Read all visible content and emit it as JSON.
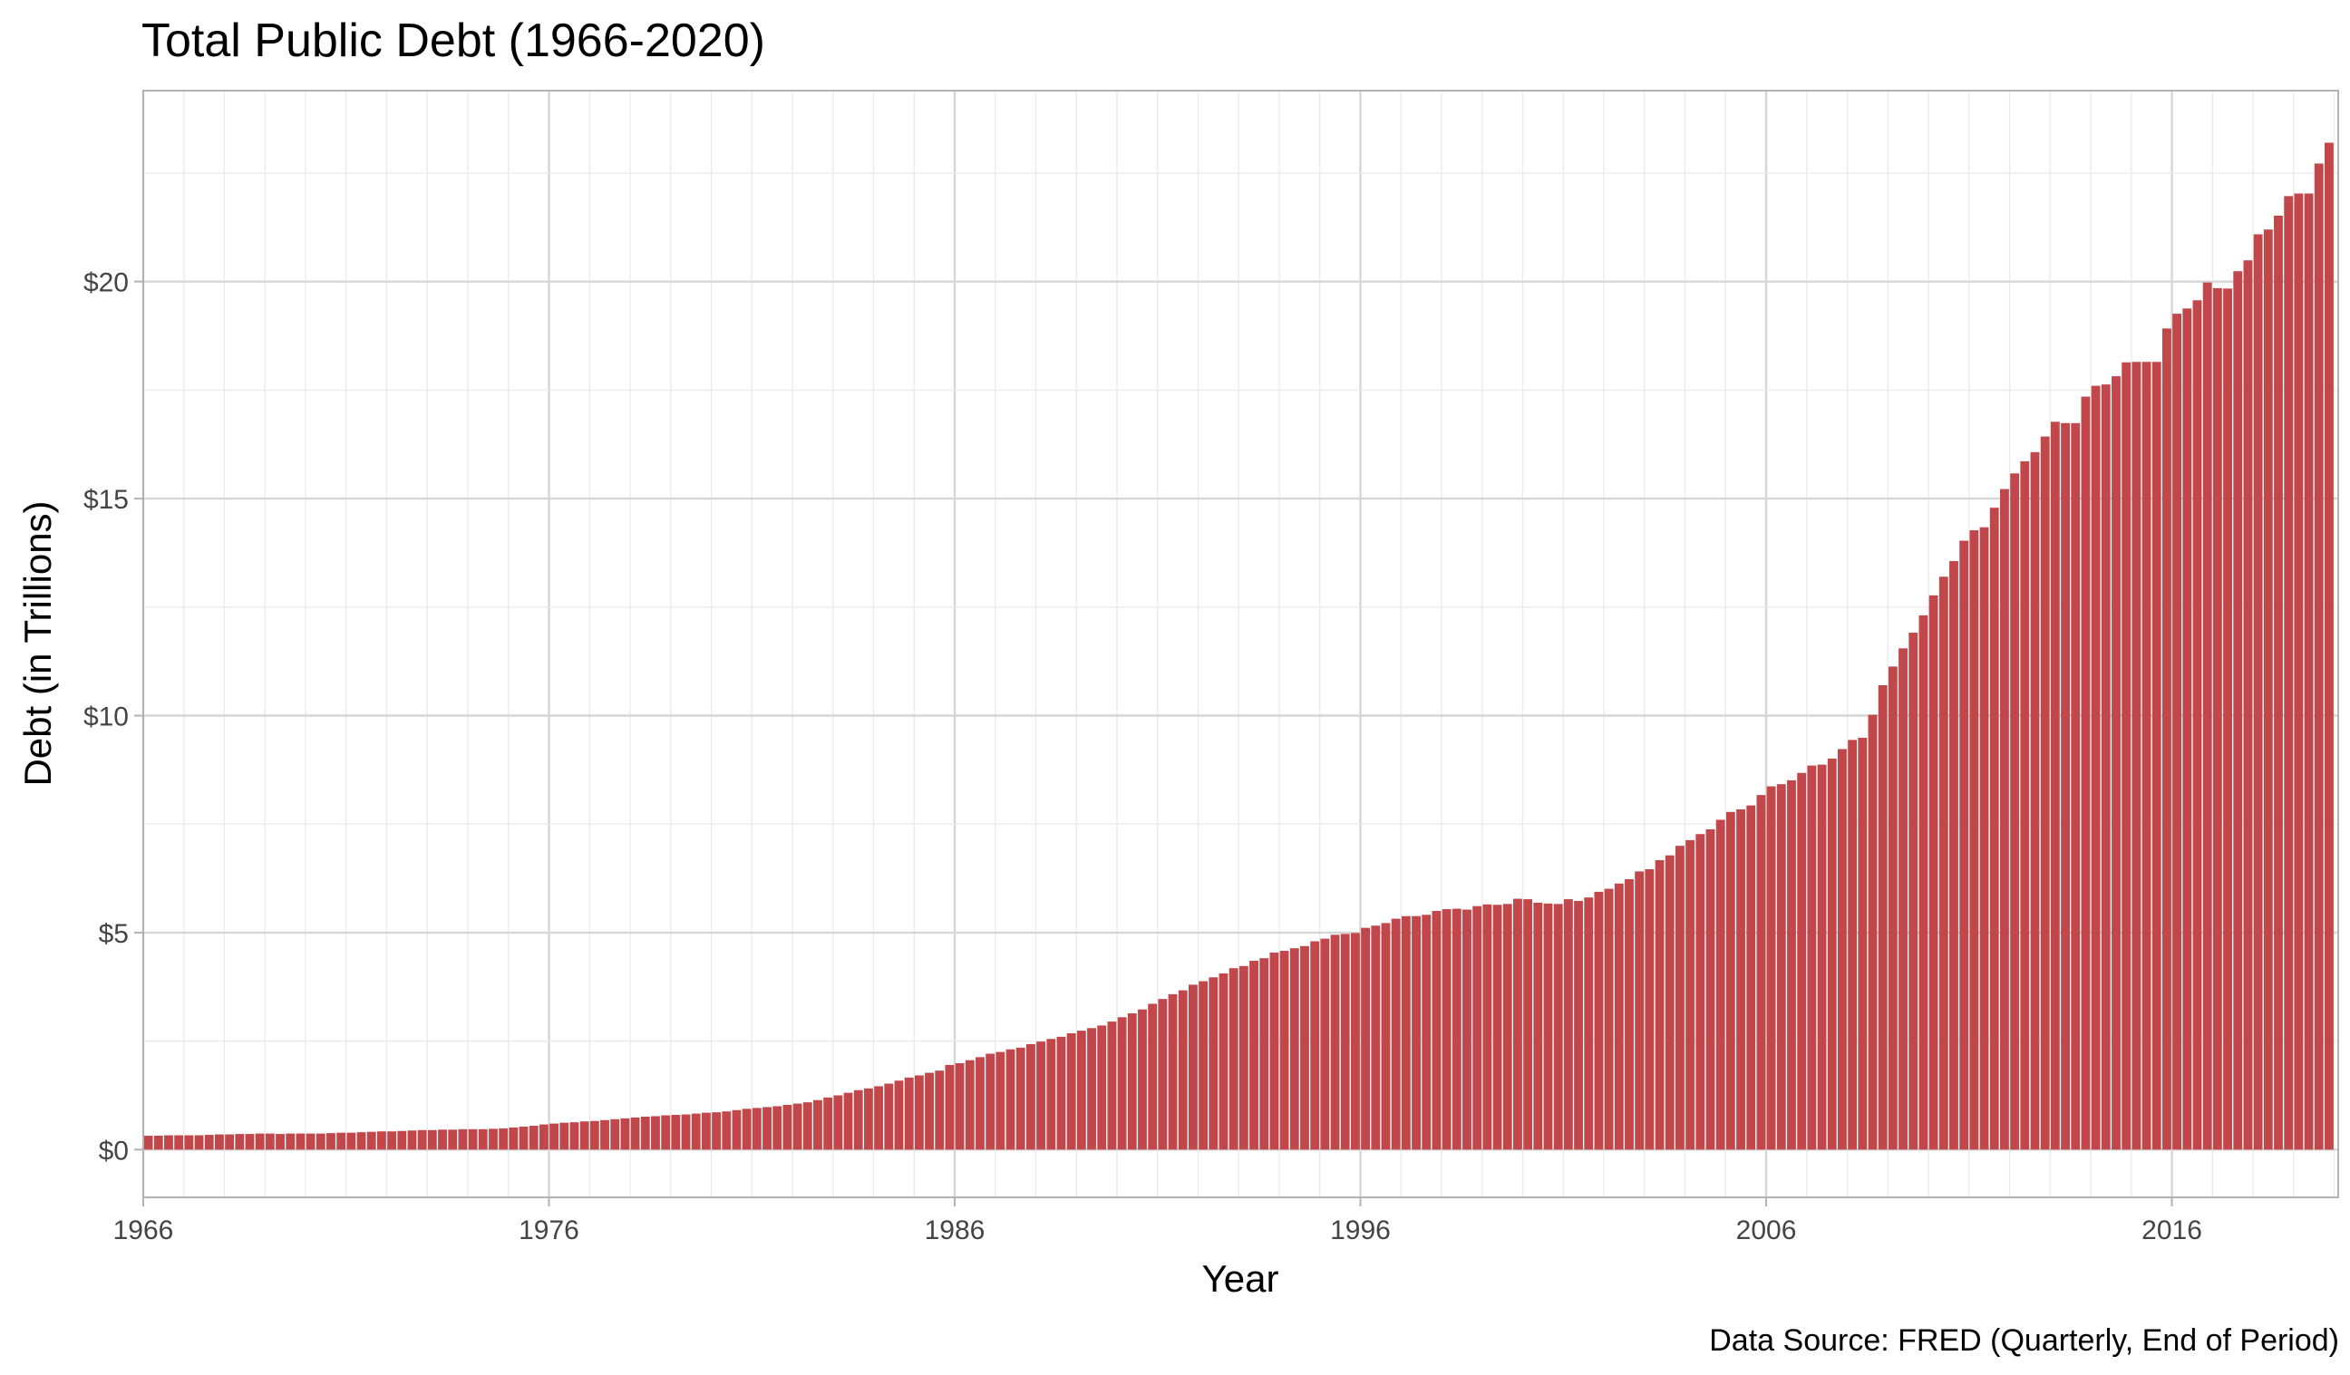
{
  "chart_data": {
    "type": "bar",
    "title": "Total Public Debt (1966-2020)",
    "xlabel": "Year",
    "ylabel": "Debt (in Trillions)",
    "caption": "Data Source: FRED (Quarterly, End of Period)",
    "x_start": 1966,
    "frequency": "quarterly",
    "xlim": [
      1966,
      2020.1
    ],
    "ylim": [
      -1.1,
      24.4
    ],
    "x_ticks": [
      1966,
      1976,
      1986,
      1996,
      2006,
      2016
    ],
    "x_tick_labels": [
      "1966",
      "1976",
      "1986",
      "1996",
      "2006",
      "2016"
    ],
    "y_ticks": [
      0,
      5,
      10,
      15,
      20
    ],
    "y_tick_labels": [
      "$0",
      "$5",
      "$10",
      "$15",
      "$20"
    ],
    "grid": true,
    "bar_color": "#c1474b",
    "values": [
      0.32,
      0.32,
      0.33,
      0.33,
      0.33,
      0.33,
      0.34,
      0.35,
      0.35,
      0.36,
      0.36,
      0.37,
      0.37,
      0.36,
      0.37,
      0.37,
      0.37,
      0.37,
      0.38,
      0.39,
      0.39,
      0.4,
      0.41,
      0.42,
      0.42,
      0.43,
      0.44,
      0.45,
      0.45,
      0.46,
      0.46,
      0.47,
      0.47,
      0.47,
      0.48,
      0.49,
      0.51,
      0.53,
      0.55,
      0.58,
      0.6,
      0.62,
      0.63,
      0.65,
      0.66,
      0.68,
      0.7,
      0.72,
      0.74,
      0.76,
      0.77,
      0.79,
      0.8,
      0.81,
      0.83,
      0.85,
      0.86,
      0.88,
      0.91,
      0.94,
      0.96,
      0.98,
      1.0,
      1.03,
      1.06,
      1.09,
      1.14,
      1.2,
      1.25,
      1.31,
      1.37,
      1.41,
      1.46,
      1.52,
      1.59,
      1.66,
      1.71,
      1.77,
      1.82,
      1.95,
      1.99,
      2.06,
      2.13,
      2.21,
      2.25,
      2.31,
      2.35,
      2.43,
      2.49,
      2.55,
      2.6,
      2.68,
      2.74,
      2.8,
      2.86,
      2.95,
      3.05,
      3.14,
      3.23,
      3.36,
      3.47,
      3.58,
      3.67,
      3.8,
      3.88,
      3.97,
      4.06,
      4.18,
      4.23,
      4.35,
      4.41,
      4.54,
      4.58,
      4.64,
      4.69,
      4.8,
      4.86,
      4.95,
      4.97,
      4.99,
      5.11,
      5.16,
      5.22,
      5.32,
      5.38,
      5.38,
      5.41,
      5.5,
      5.54,
      5.55,
      5.53,
      5.61,
      5.65,
      5.64,
      5.66,
      5.78,
      5.77,
      5.69,
      5.67,
      5.66,
      5.77,
      5.73,
      5.81,
      5.94,
      6.01,
      6.13,
      6.23,
      6.41,
      6.46,
      6.67,
      6.78,
      7.0,
      7.13,
      7.27,
      7.38,
      7.6,
      7.78,
      7.84,
      7.93,
      8.17,
      8.37,
      8.42,
      8.51,
      8.68,
      8.85,
      8.87,
      9.01,
      9.23,
      9.44,
      9.49,
      10.02,
      10.7,
      11.13,
      11.55,
      11.91,
      12.31,
      12.77,
      13.2,
      13.56,
      14.03,
      14.27,
      14.34,
      14.79,
      15.22,
      15.58,
      15.86,
      16.07,
      16.43,
      16.77,
      16.74,
      16.74,
      17.35,
      17.6,
      17.63,
      17.82,
      18.14,
      18.15,
      18.15,
      18.15,
      18.92,
      19.26,
      19.38,
      19.57,
      19.98,
      19.85,
      19.84,
      20.24,
      20.49,
      21.09,
      21.2,
      21.52,
      21.97,
      22.03,
      22.03,
      22.72,
      23.2
    ]
  }
}
